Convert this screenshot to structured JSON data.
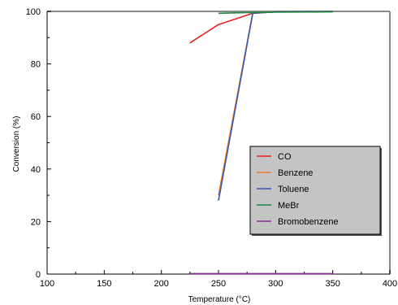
{
  "chart_data": {
    "type": "line",
    "title": "",
    "xlabel": "Temperature (°C)",
    "ylabel": "Conversion (%)",
    "xlim": [
      100,
      400
    ],
    "ylim": [
      0,
      100
    ],
    "xticks": [
      100,
      150,
      200,
      250,
      300,
      350,
      400
    ],
    "yticks": [
      0,
      20,
      40,
      60,
      80,
      100
    ],
    "grid": false,
    "legend_position": "right",
    "series": [
      {
        "name": "CO",
        "color": "#e8211f",
        "x": [
          225,
          250,
          280,
          300,
          350
        ],
        "y": [
          88,
          95,
          99.3,
          99.8,
          100
        ]
      },
      {
        "name": "Benzene",
        "color": "#f07c2a",
        "x": [
          250,
          280,
          300,
          350
        ],
        "y": [
          30,
          99.5,
          99.8,
          100
        ]
      },
      {
        "name": "Toluene",
        "color": "#3c55a8",
        "x": [
          250,
          280,
          300,
          350
        ],
        "y": [
          28,
          99.3,
          99.8,
          100
        ]
      },
      {
        "name": "MeBr",
        "color": "#1d8a3c",
        "x": [
          250,
          280,
          300,
          350
        ],
        "y": [
          99.3,
          99.6,
          99.7,
          99.8
        ]
      },
      {
        "name": "Bromobenzene",
        "color": "#8b2b9a",
        "x": [
          225,
          250,
          300,
          350
        ],
        "y": [
          0.2,
          0.2,
          0.2,
          0.2
        ]
      }
    ]
  }
}
